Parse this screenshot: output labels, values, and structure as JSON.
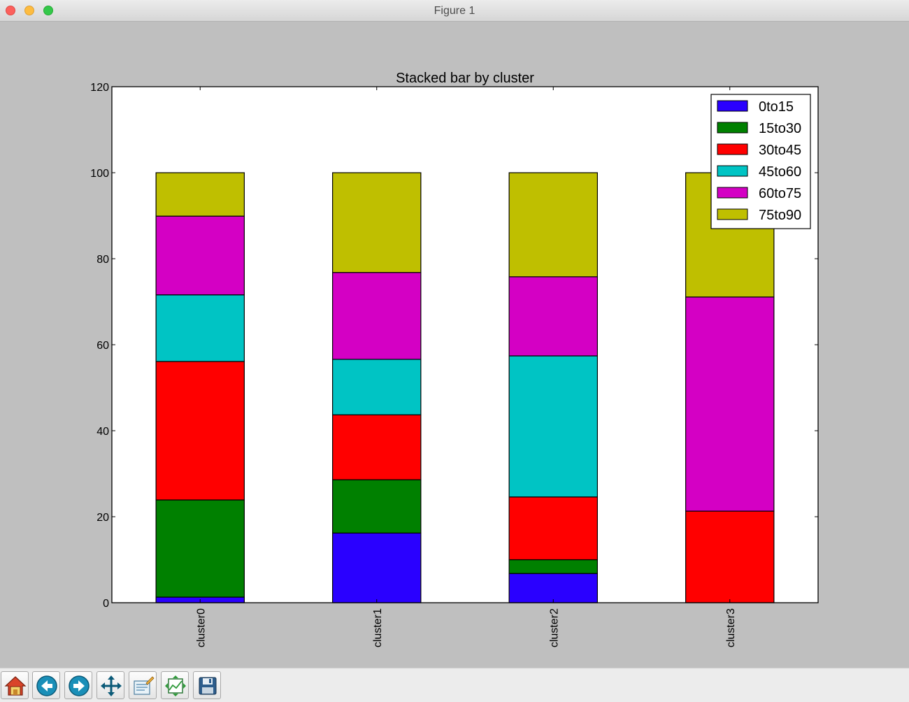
{
  "window": {
    "title": "Figure 1"
  },
  "toolbar": {
    "buttons": [
      {
        "name": "home-button",
        "icon": "home-icon"
      },
      {
        "name": "back-button",
        "icon": "back-arrow-icon"
      },
      {
        "name": "forward-button",
        "icon": "forward-arrow-icon"
      },
      {
        "name": "pan-button",
        "icon": "pan-arrows-icon"
      },
      {
        "name": "zoom-button",
        "icon": "zoom-rect-icon"
      },
      {
        "name": "configure-subplots-button",
        "icon": "subplots-icon"
      },
      {
        "name": "save-button",
        "icon": "save-disk-icon"
      }
    ]
  },
  "chart_data": {
    "type": "bar",
    "stacked": true,
    "title": "Stacked bar by cluster",
    "xlabel": "",
    "ylabel": "",
    "categories": [
      "cluster0",
      "cluster1",
      "cluster2",
      "cluster3"
    ],
    "ylim": [
      0,
      120
    ],
    "yticks": [
      0,
      20,
      40,
      60,
      80,
      100,
      120
    ],
    "legend_position": "top-right",
    "grid": false,
    "series": [
      {
        "name": "0to15",
        "color": "#2a00ff",
        "values": [
          1.3,
          16.2,
          6.8,
          0
        ]
      },
      {
        "name": "15to30",
        "color": "#008000",
        "values": [
          22.6,
          12.4,
          3.2,
          0
        ]
      },
      {
        "name": "30to45",
        "color": "#ff0000",
        "values": [
          32.2,
          15.1,
          14.6,
          21.3
        ]
      },
      {
        "name": "45to60",
        "color": "#00c4c4",
        "values": [
          15.5,
          12.9,
          32.8,
          0
        ]
      },
      {
        "name": "60to75",
        "color": "#d400c4",
        "values": [
          18.3,
          20.2,
          18.4,
          49.8
        ]
      },
      {
        "name": "75to90",
        "color": "#bfbf00",
        "values": [
          10.1,
          23.2,
          24.2,
          28.9
        ]
      }
    ]
  }
}
